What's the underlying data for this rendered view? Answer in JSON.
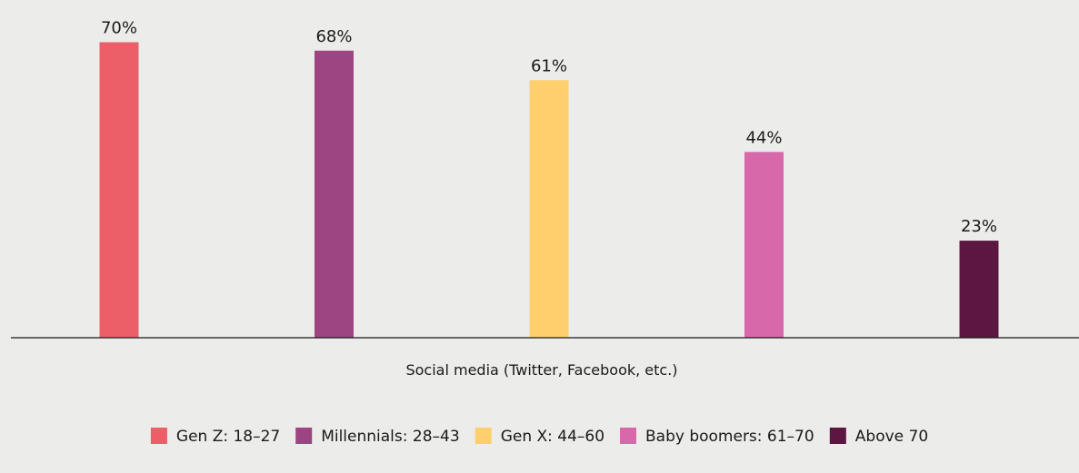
{
  "chart_data": {
    "type": "bar",
    "categories": [
      "Social media (Twitter, Facebook, etc.)"
    ],
    "series": [
      {
        "name": "Gen Z: 18–27",
        "values": [
          70
        ],
        "color": "#ec5f68",
        "label": "70%"
      },
      {
        "name": "Millennials: 28–43",
        "values": [
          68
        ],
        "color": "#9d4583",
        "label": "68%"
      },
      {
        "name": "Gen X: 44–60",
        "values": [
          61
        ],
        "color": "#fecf6d",
        "label": "61%"
      },
      {
        "name": "Baby boomers: 61–70",
        "values": [
          44
        ],
        "color": "#d768a9",
        "label": "44%"
      },
      {
        "name": "Above 70",
        "values": [
          23
        ],
        "color": "#5b1741",
        "label": "23%"
      }
    ],
    "title": "",
    "xlabel": "Social media (Twitter, Facebook, etc.)",
    "ylabel": "",
    "ylim": [
      0,
      75
    ],
    "unit": "%",
    "grid": false,
    "legend_position": "bottom"
  },
  "colors": {
    "background": "#ececeb",
    "axis": "#1a1a1a",
    "text": "#1a1a1a"
  }
}
